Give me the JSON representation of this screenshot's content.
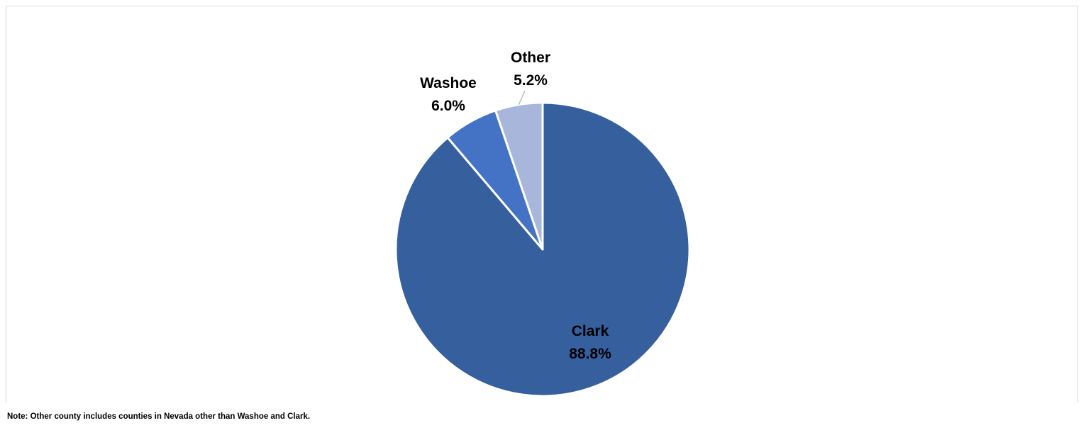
{
  "chart_data": {
    "type": "pie",
    "title": "",
    "start_angle_deg": 0,
    "direction": "clockwise",
    "slices": [
      {
        "label": "Clark",
        "value": 88.8,
        "value_label": "88.8%",
        "color": "#365F9E"
      },
      {
        "label": "Washoe",
        "value": 6.0,
        "value_label": "6.0%",
        "color": "#4472C4"
      },
      {
        "label": "Other",
        "value": 5.2,
        "value_label": "5.2%",
        "color": "#A9B6DC"
      }
    ],
    "slice_border_color": "#ffffff",
    "leader_line_color": "#a6a6a6",
    "legend": "none"
  },
  "note": {
    "text": "Note: Other county includes counties in Nevada other than Washoe and Clark."
  }
}
